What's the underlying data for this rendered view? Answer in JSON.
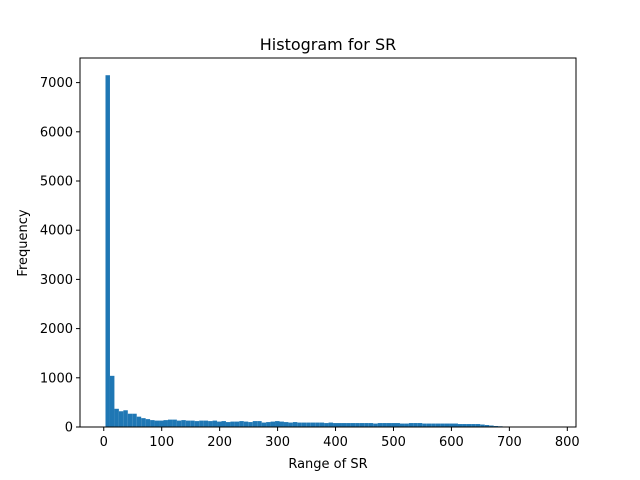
{
  "chart_data": {
    "type": "bar",
    "title": "Histogram for SR",
    "xlabel": "Range of SR",
    "ylabel": "Frequency",
    "xlim": [
      -41,
      815
    ],
    "ylim": [
      0,
      7500
    ],
    "x_ticks": [
      0,
      100,
      200,
      300,
      400,
      500,
      600,
      700,
      800
    ],
    "y_ticks": [
      0,
      1000,
      2000,
      3000,
      4000,
      5000,
      6000,
      7000
    ],
    "bar_color": "#1f77b4",
    "bin_start": 3,
    "bin_width": 7.7,
    "values": [
      7150,
      1040,
      370,
      320,
      340,
      270,
      270,
      210,
      180,
      160,
      140,
      130,
      130,
      140,
      150,
      150,
      130,
      140,
      130,
      130,
      120,
      130,
      130,
      120,
      130,
      110,
      120,
      100,
      110,
      110,
      120,
      110,
      100,
      120,
      120,
      90,
      100,
      110,
      120,
      110,
      100,
      90,
      100,
      90,
      90,
      90,
      90,
      90,
      90,
      80,
      90,
      80,
      80,
      80,
      80,
      80,
      80,
      80,
      80,
      80,
      70,
      80,
      80,
      80,
      80,
      80,
      70,
      70,
      80,
      80,
      80,
      70,
      70,
      70,
      70,
      70,
      70,
      70,
      70,
      60,
      60,
      60,
      60,
      60,
      50,
      40,
      30,
      20,
      15,
      10,
      5,
      3,
      0,
      0,
      0,
      0,
      0,
      0,
      0,
      0,
      0,
      0,
      0,
      0,
      0,
      0,
      0,
      0,
      0,
      0
    ]
  }
}
